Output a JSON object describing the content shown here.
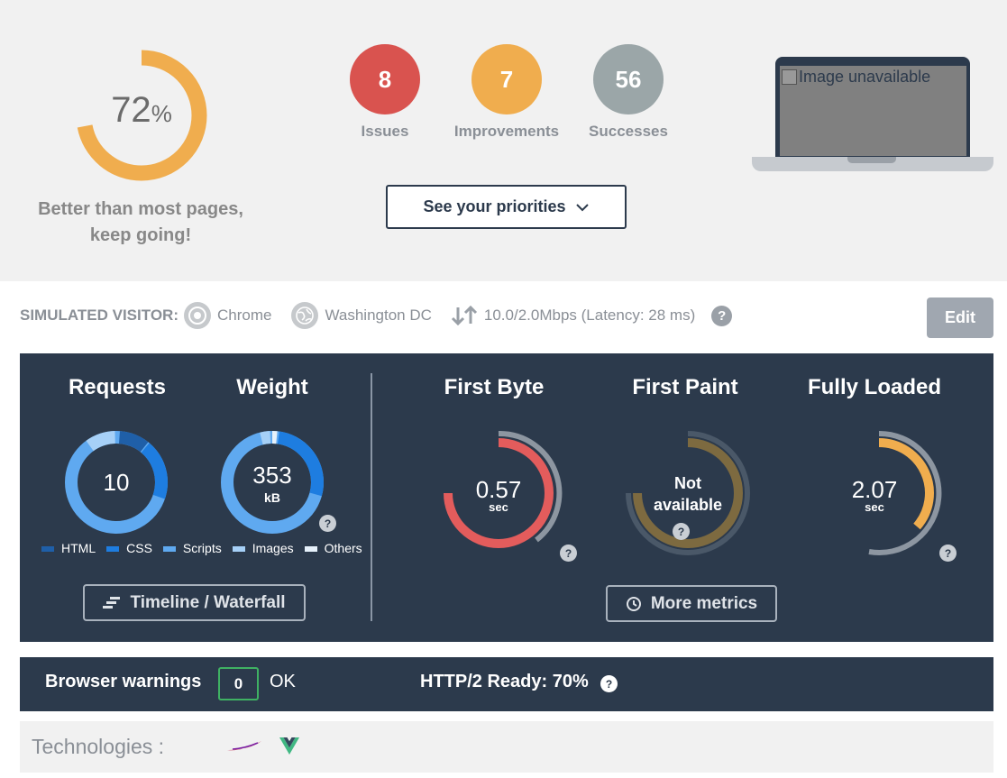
{
  "score": {
    "value": "72",
    "unit": "%",
    "fraction": 0.72,
    "message_line1": "Better than most pages,",
    "message_line2": "keep going!",
    "color": "#f0ad4e"
  },
  "summary": {
    "issues": {
      "count": "8",
      "label": "Issues",
      "color": "#d9534f"
    },
    "improvements": {
      "count": "7",
      "label": "Improvements",
      "color": "#f0ad4e"
    },
    "successes": {
      "count": "56",
      "label": "Successes",
      "color": "#9ba6a8"
    }
  },
  "priorities_button": "See your priorities",
  "screenshot_alt": "Image unavailable",
  "visitor": {
    "label": "SIMULATED VISITOR:",
    "browser": "Chrome",
    "location": "Washington DC",
    "connection": "10.0/2.0Mbps (Latency: 28 ms)",
    "help": "?",
    "edit_label": "Edit"
  },
  "metrics": {
    "requests": {
      "title": "Requests",
      "value": "10"
    },
    "weight": {
      "title": "Weight",
      "value": "353",
      "unit": "kB"
    },
    "legend": [
      {
        "label": "HTML",
        "color": "#1f5fa8"
      },
      {
        "label": "CSS",
        "color": "#1e7de0"
      },
      {
        "label": "Scripts",
        "color": "#5fa9f0"
      },
      {
        "label": "Images",
        "color": "#a6d0f7"
      },
      {
        "label": "Others",
        "color": "#e6f1fb"
      }
    ],
    "first_byte": {
      "title": "First Byte",
      "value": "0.57",
      "unit": "sec",
      "color": "#e35c5c"
    },
    "first_paint": {
      "title": "First Paint",
      "value_line1": "Not",
      "value_line2": "available"
    },
    "fully_loaded": {
      "title": "Fully Loaded",
      "value": "2.07",
      "unit": "sec",
      "color": "#f0ad4e"
    },
    "timeline_button": "Timeline / Waterfall",
    "more_metrics_button": "More metrics"
  },
  "warnings": {
    "label": "Browser warnings",
    "count": "0",
    "status": "OK",
    "http2": "HTTP/2 Ready: 70%"
  },
  "technologies": {
    "label": "Technologies :",
    "icons": [
      "apache-feather-icon",
      "vue-logo-icon"
    ]
  }
}
